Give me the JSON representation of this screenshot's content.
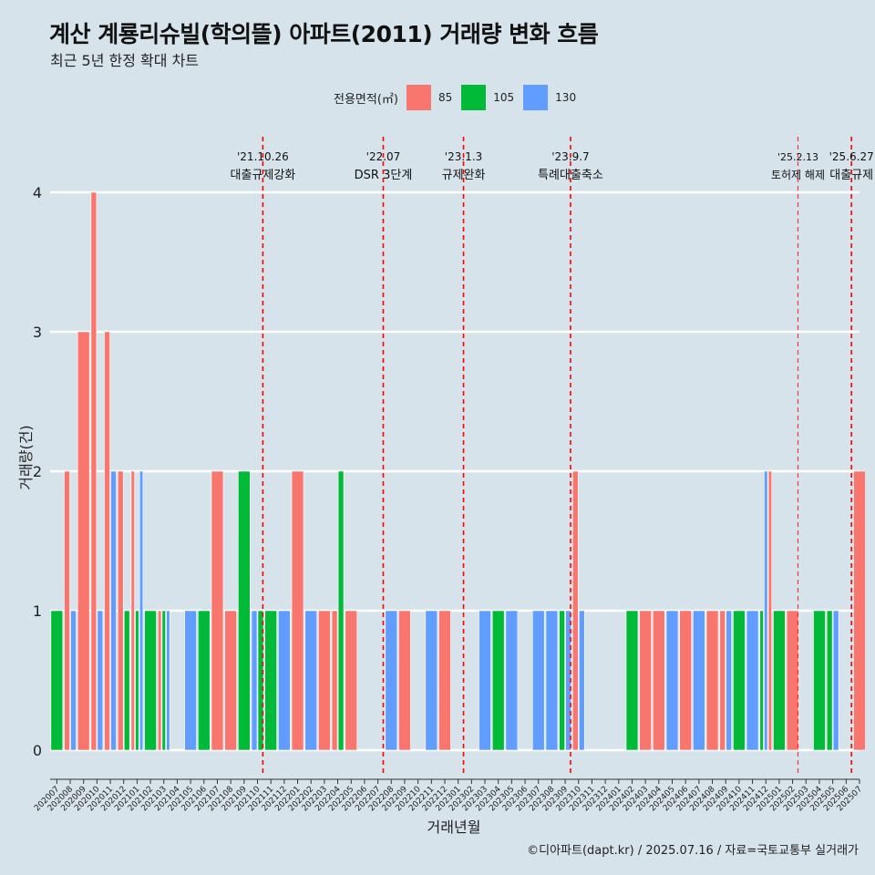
{
  "header": {
    "title": "계산 계룡리슈빌(학의뜰) 아파트(2011) 거래량 변화 흐름",
    "subtitle": "최근 5년 한정 확대 차트"
  },
  "legend": {
    "title": "전용면적(㎡)",
    "items": [
      {
        "label": "85",
        "color": "#f8766d"
      },
      {
        "label": "105",
        "color": "#00ba38"
      },
      {
        "label": "130",
        "color": "#619cff"
      }
    ]
  },
  "caption": "©디아파트(dapt.kr) / 2025.07.16 / 자료=국토교통부 실거래가",
  "colors": {
    "background": "#d6e3ea",
    "85": "#f8766d",
    "105": "#00ba38",
    "130": "#619cff",
    "event_line": "#ff0000"
  },
  "chart_data": {
    "type": "bar",
    "xlabel": "거래년월",
    "ylabel": "거래량(건)",
    "ylim": [
      0,
      4
    ],
    "yticks": [
      0,
      1,
      2,
      3,
      4
    ],
    "grid": "horizontal",
    "legend_position": "top",
    "categories": [
      "202007",
      "202008",
      "202009",
      "202010",
      "202011",
      "202012",
      "202101",
      "202102",
      "202103",
      "202104",
      "202105",
      "202106",
      "202107",
      "202108",
      "202109",
      "202110",
      "202111",
      "202112",
      "202201",
      "202202",
      "202203",
      "202204",
      "202205",
      "202206",
      "202207",
      "202208",
      "202209",
      "202210",
      "202211",
      "202212",
      "202301",
      "202302",
      "202303",
      "202304",
      "202305",
      "202306",
      "202307",
      "202308",
      "202309",
      "202310",
      "202311",
      "202312",
      "202401",
      "202402",
      "202403",
      "202404",
      "202405",
      "202406",
      "202407",
      "202408",
      "202409",
      "202410",
      "202411",
      "202412",
      "202501",
      "202502",
      "202503",
      "202504",
      "202505",
      "202506",
      "202507"
    ],
    "bars": [
      {
        "month": "202007",
        "series": [
          "105"
        ],
        "values": [
          1
        ]
      },
      {
        "month": "202008",
        "series": [
          "85",
          "130"
        ],
        "values": [
          2,
          1
        ]
      },
      {
        "month": "202009",
        "series": [
          "85"
        ],
        "values": [
          3
        ]
      },
      {
        "month": "202010",
        "series": [
          "85",
          "130"
        ],
        "values": [
          4,
          1
        ]
      },
      {
        "month": "202011",
        "series": [
          "85",
          "130"
        ],
        "values": [
          3,
          2
        ]
      },
      {
        "month": "202012",
        "series": [
          "85",
          "105"
        ],
        "values": [
          2,
          1
        ]
      },
      {
        "month": "202101",
        "series": [
          "85",
          "105",
          "130"
        ],
        "values": [
          2,
          1,
          2
        ]
      },
      {
        "month": "202102",
        "series": [
          "105"
        ],
        "values": [
          1
        ]
      },
      {
        "month": "202103",
        "series": [
          "85",
          "105",
          "130"
        ],
        "values": [
          1,
          1,
          1
        ]
      },
      {
        "month": "202105",
        "series": [
          "130"
        ],
        "values": [
          1
        ]
      },
      {
        "month": "202106",
        "series": [
          "105"
        ],
        "values": [
          1
        ]
      },
      {
        "month": "202107",
        "series": [
          "85"
        ],
        "values": [
          2
        ]
      },
      {
        "month": "202108",
        "series": [
          "85"
        ],
        "values": [
          1
        ]
      },
      {
        "month": "202109",
        "series": [
          "105"
        ],
        "values": [
          2
        ]
      },
      {
        "month": "202110",
        "series": [
          "130",
          "105"
        ],
        "values": [
          1,
          1
        ]
      },
      {
        "month": "202111",
        "series": [
          "105"
        ],
        "values": [
          1
        ]
      },
      {
        "month": "202112",
        "series": [
          "130"
        ],
        "values": [
          1
        ]
      },
      {
        "month": "202201",
        "series": [
          "85"
        ],
        "values": [
          2
        ]
      },
      {
        "month": "202202",
        "series": [
          "130"
        ],
        "values": [
          1
        ]
      },
      {
        "month": "202203",
        "series": [
          "85"
        ],
        "values": [
          1
        ]
      },
      {
        "month": "202204",
        "series": [
          "85",
          "105"
        ],
        "values": [
          1,
          2
        ]
      },
      {
        "month": "202205",
        "series": [
          "85"
        ],
        "values": [
          1
        ]
      },
      {
        "month": "202208",
        "series": [
          "130"
        ],
        "values": [
          1
        ]
      },
      {
        "month": "202209",
        "series": [
          "85"
        ],
        "values": [
          1
        ]
      },
      {
        "month": "202211",
        "series": [
          "130"
        ],
        "values": [
          1
        ]
      },
      {
        "month": "202212",
        "series": [
          "85"
        ],
        "values": [
          1
        ]
      },
      {
        "month": "202303",
        "series": [
          "130"
        ],
        "values": [
          1
        ]
      },
      {
        "month": "202304",
        "series": [
          "105"
        ],
        "values": [
          1
        ]
      },
      {
        "month": "202305",
        "series": [
          "130"
        ],
        "values": [
          1
        ]
      },
      {
        "month": "202307",
        "series": [
          "130"
        ],
        "values": [
          1
        ]
      },
      {
        "month": "202308",
        "series": [
          "130"
        ],
        "values": [
          1
        ]
      },
      {
        "month": "202309",
        "series": [
          "105",
          "130"
        ],
        "values": [
          1,
          1
        ]
      },
      {
        "month": "202310",
        "series": [
          "85",
          "130"
        ],
        "values": [
          2,
          1
        ]
      },
      {
        "month": "202402",
        "series": [
          "105"
        ],
        "values": [
          1
        ]
      },
      {
        "month": "202403",
        "series": [
          "85"
        ],
        "values": [
          1
        ]
      },
      {
        "month": "202404",
        "series": [
          "85"
        ],
        "values": [
          1
        ]
      },
      {
        "month": "202405",
        "series": [
          "130"
        ],
        "values": [
          1
        ]
      },
      {
        "month": "202406",
        "series": [
          "85"
        ],
        "values": [
          1
        ]
      },
      {
        "month": "202407",
        "series": [
          "130"
        ],
        "values": [
          1
        ]
      },
      {
        "month": "202408",
        "series": [
          "85"
        ],
        "values": [
          1
        ]
      },
      {
        "month": "202409",
        "series": [
          "85",
          "130"
        ],
        "values": [
          1,
          1
        ]
      },
      {
        "month": "202410",
        "series": [
          "105"
        ],
        "values": [
          1
        ]
      },
      {
        "month": "202411",
        "series": [
          "130"
        ],
        "values": [
          1
        ]
      },
      {
        "month": "202412",
        "series": [
          "105",
          "130",
          "85"
        ],
        "values": [
          1,
          2,
          2
        ]
      },
      {
        "month": "202501",
        "series": [
          "105"
        ],
        "values": [
          1
        ]
      },
      {
        "month": "202502",
        "series": [
          "85"
        ],
        "values": [
          1
        ]
      },
      {
        "month": "202504",
        "series": [
          "105"
        ],
        "values": [
          1
        ]
      },
      {
        "month": "202505",
        "series": [
          "105",
          "130"
        ],
        "values": [
          1,
          1
        ]
      },
      {
        "month": "202507",
        "series": [
          "85"
        ],
        "values": [
          2
        ]
      }
    ],
    "events": [
      {
        "position": 15.4,
        "date": "'21.10.26",
        "label": "대출규제강화"
      },
      {
        "position": 24.4,
        "date": "'22.07",
        "label": "DSR 3단계"
      },
      {
        "position": 30.4,
        "date": "'23.1.3",
        "label": "규제완화"
      },
      {
        "position": 38.4,
        "date": "'23.9.7",
        "label": "특례대출축소"
      },
      {
        "position": 55.4,
        "date": "'25.2.13",
        "label": "토허제 해제",
        "dashed_lighter": true
      },
      {
        "position": 59.4,
        "date": "'25.6.27",
        "label": "대출규제"
      }
    ]
  }
}
